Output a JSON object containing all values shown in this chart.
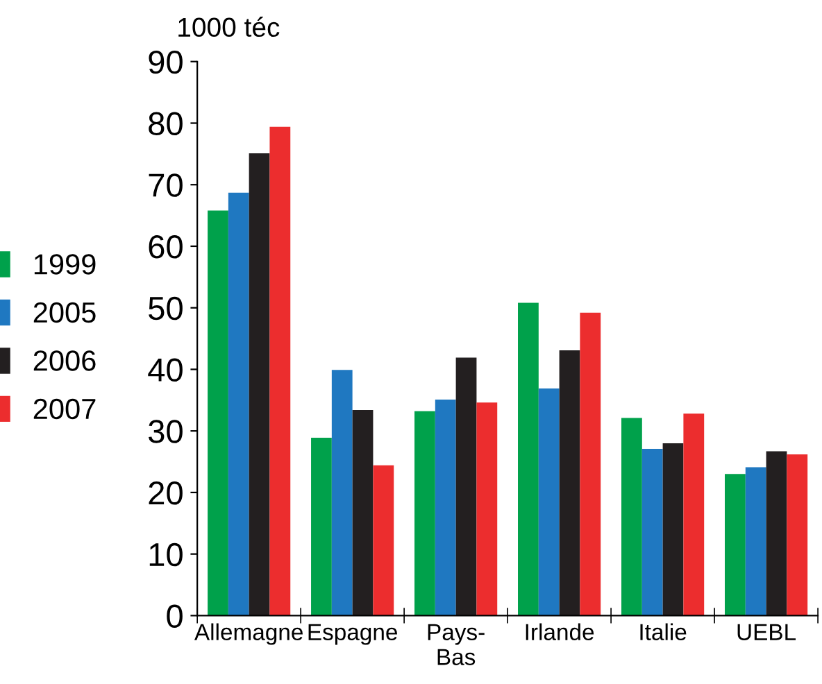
{
  "chart_data": {
    "type": "bar",
    "ylabel": "1000 téc",
    "categories": [
      "Allemagne",
      "Espagne",
      "Pays-\nBas",
      "Irlande",
      "Italie",
      "UEBL"
    ],
    "series": [
      {
        "name": "1999",
        "color": "#00a14b",
        "values": [
          65.8,
          28.9,
          33.2,
          50.8,
          32.1,
          23.0
        ]
      },
      {
        "name": "2005",
        "color": "#1f78c1",
        "values": [
          68.7,
          39.9,
          35.1,
          36.9,
          27.1,
          24.1
        ]
      },
      {
        "name": "2006",
        "color": "#231f20",
        "values": [
          75.1,
          33.4,
          41.9,
          43.1,
          28.0,
          26.7
        ]
      },
      {
        "name": "2007",
        "color": "#ec2d2e",
        "values": [
          79.4,
          24.4,
          34.6,
          49.2,
          32.8,
          26.2
        ]
      }
    ],
    "ylim": [
      0,
      90
    ],
    "yticks": [
      0,
      10,
      20,
      30,
      40,
      50,
      60,
      70,
      80,
      90
    ],
    "grid": false,
    "legend": "left"
  }
}
